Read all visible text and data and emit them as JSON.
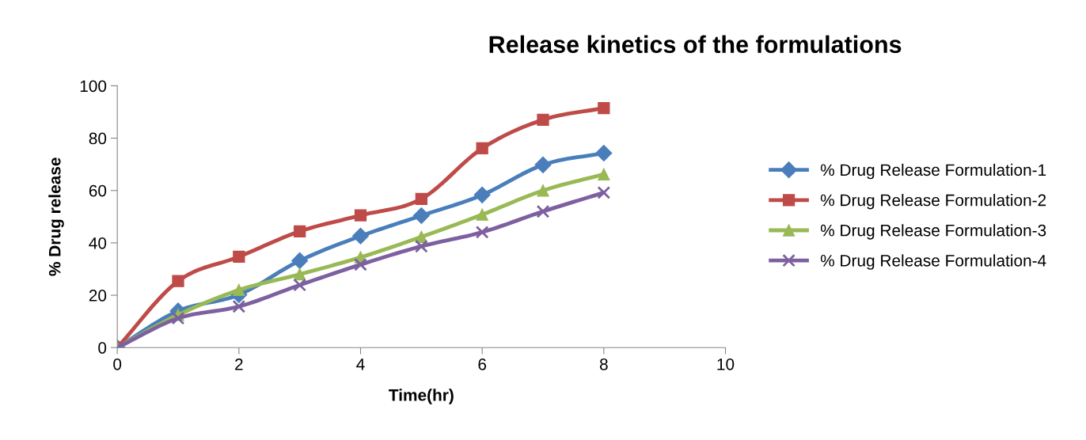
{
  "chart_data": {
    "type": "line",
    "title": "Release kinetics of the formulations",
    "xlabel": "Time(hr)",
    "ylabel": "% Drug release",
    "x": [
      0,
      1,
      2,
      3,
      4,
      5,
      6,
      7,
      8
    ],
    "series": [
      {
        "name": "% Drug Release Formulation-1",
        "color": "#4a7ebb",
        "marker": "diamond",
        "values": [
          0,
          14,
          20.2,
          33.2,
          42.6,
          50.4,
          58.3,
          69.8,
          74.3
        ]
      },
      {
        "name": "% Drug Release Formulation-2",
        "color": "#be4b48",
        "marker": "square",
        "values": [
          0,
          25.4,
          34.7,
          44.4,
          50.5,
          56.8,
          76.1,
          87,
          91.5
        ]
      },
      {
        "name": "% Drug Release Formulation-3",
        "color": "#98b954",
        "marker": "triangle",
        "values": [
          0,
          12.5,
          22,
          28,
          34.5,
          42.3,
          50.8,
          60,
          66.2
        ]
      },
      {
        "name": "% Drug Release Formulation-4",
        "color": "#7d60a0",
        "marker": "cross",
        "values": [
          0,
          11.2,
          15.7,
          23.9,
          31.7,
          38.7,
          44.1,
          52,
          59.2
        ]
      }
    ],
    "xlim": [
      0,
      10
    ],
    "xticks": [
      0,
      2,
      4,
      6,
      8,
      10
    ],
    "ylim": [
      0,
      100
    ],
    "yticks": [
      0,
      20,
      40,
      60,
      80,
      100
    ],
    "grid": false,
    "legend": "right",
    "line_style": "solid"
  }
}
